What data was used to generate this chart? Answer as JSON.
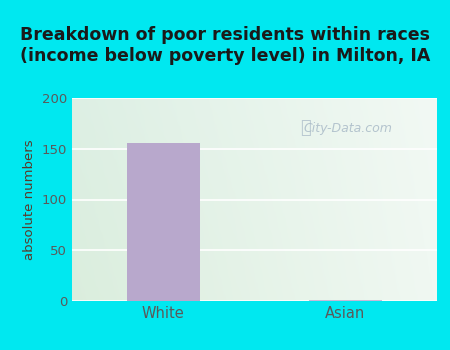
{
  "title": "Breakdown of poor residents within races\n(income below poverty level) in Milton, IA",
  "categories": [
    "White",
    "Asian"
  ],
  "values": [
    156,
    1
  ],
  "bar_colors": [
    "#b8a8cc",
    "#c8b8d8"
  ],
  "ylabel": "absolute numbers",
  "ylim": [
    0,
    200
  ],
  "yticks": [
    0,
    50,
    100,
    150,
    200
  ],
  "bg_outer": "#00e8f0",
  "grid_color": "#ffffff",
  "title_color": "#1a1a1a",
  "title_fontsize": 12.5,
  "axis_label_color": "#5a3a2a",
  "tick_label_color": "#5a5a5a",
  "watermark": "City-Data.com",
  "watermark_color": "#aabbc8",
  "plot_bg_tl": "#d8ede0",
  "plot_bg_tr": "#f0f8f0",
  "plot_bg_br": "#f5fcf5",
  "plot_bg_bl": "#d5ebd8"
}
